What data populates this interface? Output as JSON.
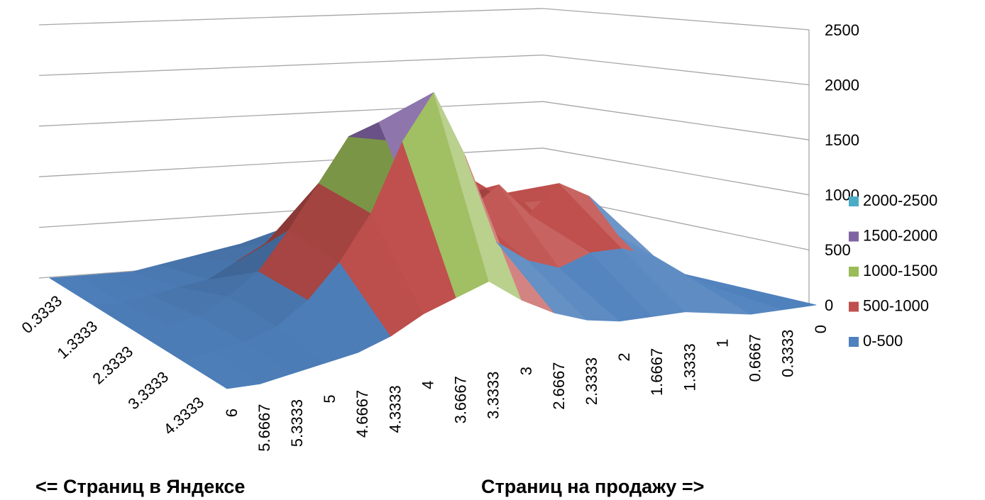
{
  "chart_data": {
    "type": "surface",
    "x_title": "Страниц на продажу =>",
    "depth_title": "<= Страниц в Яндексе",
    "categories": [
      "6",
      "5.6667",
      "5.3333",
      "5",
      "4.6667",
      "4.3333",
      "4",
      "3.6667",
      "3.3333",
      "3",
      "2.6667",
      "2.3333",
      "2",
      "1.6667",
      "1.3333",
      "1",
      "0.6667",
      "0.3333",
      "0"
    ],
    "depth_categories": [
      "0.3333",
      "1.3333",
      "2.3333",
      "3.3333",
      "4.3333"
    ],
    "rows": [
      [
        0,
        0,
        0,
        0,
        50,
        100,
        150,
        200,
        250,
        200,
        150,
        150,
        200,
        250,
        250,
        200,
        100,
        50,
        0
      ],
      [
        0,
        0,
        50,
        100,
        150,
        300,
        450,
        600,
        700,
        500,
        400,
        500,
        700,
        900,
        700,
        600,
        300,
        100,
        0
      ],
      [
        0,
        50,
        100,
        250,
        450,
        800,
        1200,
        1600,
        1700,
        1000,
        600,
        800,
        1000,
        700,
        950,
        800,
        400,
        100,
        0
      ],
      [
        0,
        50,
        100,
        200,
        400,
        700,
        1100,
        1700,
        2100,
        1500,
        700,
        500,
        400,
        500,
        500,
        400,
        200,
        50,
        0
      ],
      [
        0,
        0,
        50,
        100,
        150,
        250,
        400,
        500,
        600,
        400,
        250,
        150,
        100,
        100,
        100,
        50,
        0,
        0,
        0
      ]
    ],
    "zlim": [
      0,
      2500
    ],
    "zticks": [
      0,
      500,
      1000,
      1500,
      2000,
      2500
    ],
    "grid": true,
    "legend": [
      {
        "name": "2000-2500",
        "color": "#4bacc6"
      },
      {
        "name": "1500-2000",
        "color": "#8064a2"
      },
      {
        "name": "1000-1500",
        "color": "#9bbb59"
      },
      {
        "name": "500-1000",
        "color": "#c0504d"
      },
      {
        "name": "0-500",
        "color": "#4f81bd"
      }
    ]
  }
}
